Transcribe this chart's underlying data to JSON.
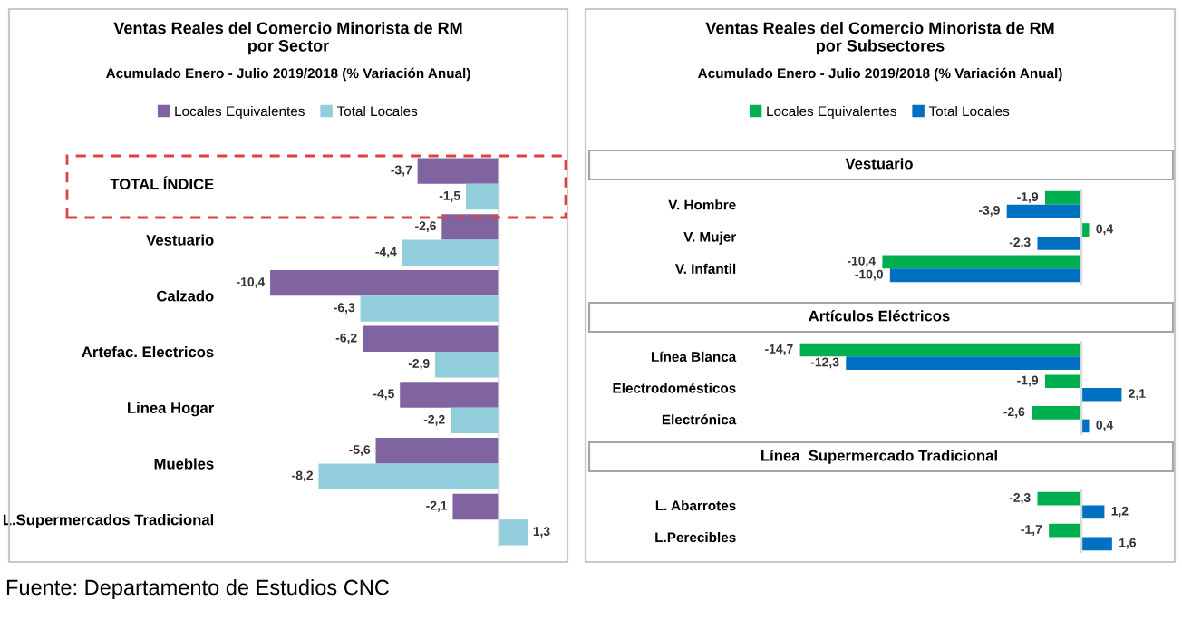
{
  "chart_data": [
    {
      "type": "bar",
      "orientation": "horizontal",
      "title": "Ventas Reales del Comercio Minorista de RM\npor Sector",
      "subtitle": "Acumulado Enero - Julio 2019/2018 (% Variación Anual)",
      "legend": "top",
      "categories": [
        "TOTAL ÍNDICE",
        "Vestuario",
        "Calzado",
        "Artefac. Electricos",
        "Linea Hogar",
        "Muebles",
        "L.Supermercados Tradicional"
      ],
      "series": [
        {
          "name": "Locales Equivalentes",
          "color": "#8064a2",
          "values": [
            -3.7,
            -2.6,
            -10.4,
            -6.2,
            -4.5,
            -5.6,
            -2.1
          ],
          "value_labels": [
            "-3,7",
            "-2,6",
            "-10,4",
            "-6,2",
            "-4,5",
            "-5,6",
            "-2,1"
          ]
        },
        {
          "name": "Total Locales",
          "color": "#92cddc",
          "values": [
            -1.5,
            -4.4,
            -6.3,
            -2.9,
            -2.2,
            -8.2,
            1.3
          ],
          "value_labels": [
            "-1,5",
            "-4,4",
            "-6,3",
            "-2,9",
            "-2,2",
            "-8,2",
            "1,3"
          ]
        }
      ],
      "annotations": [
        "Fuente: Departamento de Estudios CNC"
      ]
    },
    {
      "type": "bar",
      "orientation": "horizontal",
      "title": "Ventas Reales del Comercio Minorista de RM\npor Subsectores",
      "subtitle": "Acumulado Enero - Julio 2019/2018 (% Variación Anual)",
      "legend": "top",
      "categories": [
        "V. Hombre",
        "V. Mujer",
        "V. Infantil"
      ],
      "series": [
        {
          "name": "Locales Equivalentes",
          "color": "#00b050",
          "values": [
            -1.9,
            0.4,
            -10.4
          ],
          "value_labels": [
            "-1,9",
            "0,4",
            "-10,4"
          ]
        },
        {
          "name": "Total Locales",
          "color": "#0070c0",
          "values": [
            -3.9,
            -2.3,
            -10.0
          ],
          "value_labels": [
            "-3,9",
            "-2,3",
            "-10,0"
          ]
        }
      ],
      "annotations": [
        "Vestuario"
      ]
    },
    {
      "type": "bar",
      "orientation": "horizontal",
      "categories": [
        "Línea Blanca",
        "Electrodomésticos",
        "Electrónica"
      ],
      "series": [
        {
          "color": "#00b050",
          "values": [
            -14.7,
            -1.9,
            -2.6
          ],
          "value_labels": [
            "-14,7",
            "-1,9",
            "-2,6"
          ]
        },
        {
          "color": "#0070c0",
          "values": [
            -12.3,
            2.1,
            0.4
          ],
          "value_labels": [
            "-12,3",
            "2,1",
            "0,4"
          ]
        }
      ],
      "annotations": [
        "Artículos Eléctricos"
      ]
    },
    {
      "type": "bar",
      "orientation": "horizontal",
      "categories": [
        "L. Abarrotes",
        "L.Perecibles"
      ],
      "series": [
        {
          "color": "#00b050",
          "values": [
            -2.3,
            -1.7
          ],
          "value_labels": [
            "-2,3",
            "-1,7"
          ]
        },
        {
          "color": "#0070c0",
          "values": [
            1.2,
            1.6
          ],
          "value_labels": [
            "1,2",
            "1,6"
          ]
        }
      ],
      "annotations": [
        "Línea  Supermercado Tradicional"
      ]
    }
  ]
}
